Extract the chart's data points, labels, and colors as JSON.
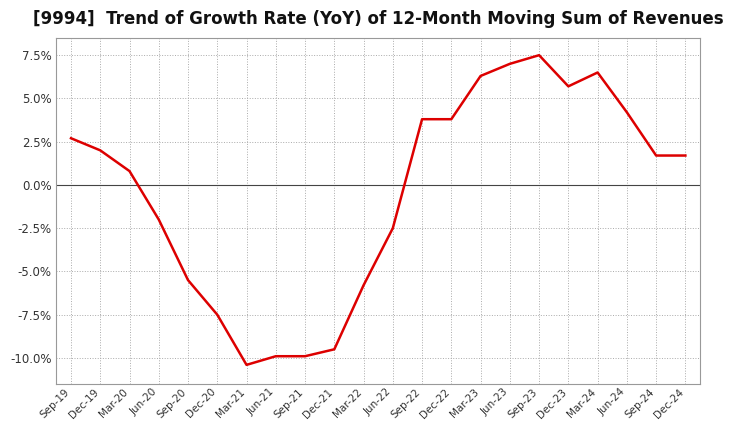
{
  "title": "[9994]  Trend of Growth Rate (YoY) of 12-Month Moving Sum of Revenues",
  "title_fontsize": 12,
  "line_color": "#dd0000",
  "background_color": "#ffffff",
  "plot_bg_color": "#ffffff",
  "grid_color": "#aaaaaa",
  "grid_style": ":",
  "ylim": [
    -0.115,
    0.085
  ],
  "yticks": [
    -0.1,
    -0.075,
    -0.05,
    -0.025,
    0.0,
    0.025,
    0.05,
    0.075
  ],
  "x_labels": [
    "Sep-19",
    "Dec-19",
    "Mar-20",
    "Jun-20",
    "Sep-20",
    "Dec-20",
    "Mar-21",
    "Jun-21",
    "Sep-21",
    "Dec-21",
    "Mar-22",
    "Jun-22",
    "Sep-22",
    "Dec-22",
    "Mar-23",
    "Jun-23",
    "Sep-23",
    "Dec-23",
    "Mar-24",
    "Jun-24",
    "Sep-24",
    "Dec-24"
  ],
  "y_values": [
    0.027,
    0.02,
    0.008,
    -0.02,
    -0.055,
    -0.075,
    -0.104,
    -0.099,
    -0.099,
    -0.095,
    -0.058,
    -0.025,
    0.038,
    0.038,
    0.063,
    0.07,
    0.075,
    0.057,
    0.065,
    0.042,
    0.017,
    0.017
  ]
}
